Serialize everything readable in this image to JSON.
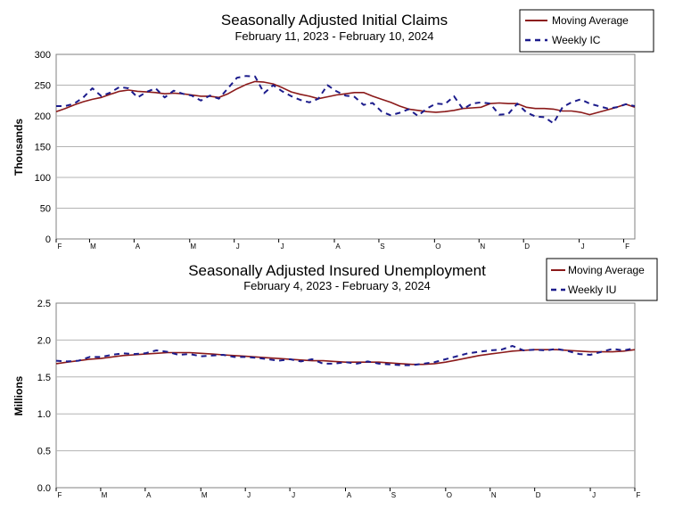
{
  "colors": {
    "moving_average": "#8b1a1a",
    "weekly": "#1c1c8c",
    "grid": "#b3b3b3"
  },
  "chart_data": [
    {
      "type": "line",
      "title": "Seasonally Adjusted Initial Claims",
      "subtitle": "February 11, 2023 - February 10, 2024",
      "xlabel": "",
      "ylabel": "Thousands",
      "ylim": [
        0,
        300
      ],
      "yticks": [
        0,
        50,
        100,
        150,
        200,
        250,
        300
      ],
      "xlim": [
        0,
        52
      ],
      "month_ticks": [
        {
          "label": "F",
          "x": 0
        },
        {
          "label": "M",
          "x": 3
        },
        {
          "label": "A",
          "x": 7
        },
        {
          "label": "M",
          "x": 12
        },
        {
          "label": "J",
          "x": 16
        },
        {
          "label": "J",
          "x": 20
        },
        {
          "label": "A",
          "x": 25
        },
        {
          "label": "S",
          "x": 29
        },
        {
          "label": "O",
          "x": 34
        },
        {
          "label": "N",
          "x": 38
        },
        {
          "label": "D",
          "x": 42
        },
        {
          "label": "J",
          "x": 47
        },
        {
          "label": "F",
          "x": 51
        }
      ],
      "grid": true,
      "legend_position": "top-right",
      "series": [
        {
          "name": "Moving Average",
          "style": "solid",
          "values": [
            207,
            212,
            218,
            223,
            227,
            230,
            235,
            240,
            242,
            240,
            239,
            238,
            236,
            237,
            236,
            234,
            232,
            232,
            230,
            236,
            244,
            251,
            256,
            255,
            252,
            246,
            239,
            235,
            232,
            228,
            231,
            234,
            236,
            238,
            238,
            232,
            227,
            222,
            216,
            211,
            209,
            207,
            206,
            207,
            209,
            212,
            213,
            214,
            220,
            221,
            220,
            220,
            214,
            212,
            212,
            211,
            208,
            208,
            206,
            202,
            206,
            210,
            214,
            219,
            214
          ]
        },
        {
          "name": "Weekly IC",
          "style": "dashed",
          "values": [
            216,
            216,
            220,
            230,
            245,
            232,
            238,
            247,
            245,
            230,
            239,
            245,
            230,
            241,
            236,
            233,
            225,
            233,
            228,
            245,
            262,
            265,
            264,
            237,
            250,
            240,
            232,
            226,
            222,
            228,
            250,
            240,
            233,
            231,
            218,
            221,
            207,
            201,
            205,
            211,
            200,
            212,
            220,
            219,
            232,
            211,
            220,
            222,
            220,
            202,
            203,
            220,
            206,
            199,
            198,
            188,
            214,
            222,
            227,
            220,
            216,
            212,
            214,
            219,
            216
          ]
        }
      ]
    },
    {
      "type": "line",
      "title": "Seasonally Adjusted Insured Unemployment",
      "subtitle": "February 4, 2023 - February 3, 2024",
      "xlabel": "",
      "ylabel": "Millions",
      "ylim": [
        0,
        2.5
      ],
      "yticks": [
        0.0,
        0.5,
        1.0,
        1.5,
        2.0,
        2.5
      ],
      "ytick_labels": [
        "0.0",
        "0.5",
        "1.0",
        "1.5",
        "2.0",
        "2.5"
      ],
      "xlim": [
        0,
        52
      ],
      "month_ticks": [
        {
          "label": "F",
          "x": 0
        },
        {
          "label": "M",
          "x": 4
        },
        {
          "label": "A",
          "x": 8
        },
        {
          "label": "M",
          "x": 13
        },
        {
          "label": "J",
          "x": 17
        },
        {
          "label": "J",
          "x": 21
        },
        {
          "label": "A",
          "x": 26
        },
        {
          "label": "S",
          "x": 30
        },
        {
          "label": "O",
          "x": 35
        },
        {
          "label": "N",
          "x": 39
        },
        {
          "label": "D",
          "x": 43
        },
        {
          "label": "J",
          "x": 48
        },
        {
          "label": "F",
          "x": 52
        }
      ],
      "grid": true,
      "legend_position": "top-right",
      "series": [
        {
          "name": "Moving Average",
          "style": "solid",
          "values": [
            1.68,
            1.7,
            1.72,
            1.74,
            1.75,
            1.77,
            1.79,
            1.8,
            1.81,
            1.82,
            1.83,
            1.83,
            1.83,
            1.82,
            1.81,
            1.8,
            1.79,
            1.78,
            1.77,
            1.76,
            1.75,
            1.74,
            1.73,
            1.72,
            1.72,
            1.71,
            1.7,
            1.7,
            1.7,
            1.7,
            1.69,
            1.68,
            1.67,
            1.67,
            1.68,
            1.7,
            1.73,
            1.76,
            1.79,
            1.81,
            1.83,
            1.85,
            1.86,
            1.87,
            1.87,
            1.87,
            1.86,
            1.85,
            1.84,
            1.84,
            1.84,
            1.85,
            1.87
          ]
        },
        {
          "name": "Weekly IU",
          "style": "dashed",
          "values": [
            1.72,
            1.71,
            1.72,
            1.77,
            1.77,
            1.8,
            1.82,
            1.81,
            1.82,
            1.86,
            1.84,
            1.8,
            1.81,
            1.78,
            1.79,
            1.8,
            1.77,
            1.77,
            1.76,
            1.74,
            1.72,
            1.74,
            1.71,
            1.74,
            1.68,
            1.68,
            1.7,
            1.68,
            1.71,
            1.68,
            1.67,
            1.66,
            1.66,
            1.68,
            1.7,
            1.74,
            1.78,
            1.82,
            1.84,
            1.86,
            1.87,
            1.92,
            1.86,
            1.87,
            1.86,
            1.88,
            1.85,
            1.81,
            1.8,
            1.84,
            1.88,
            1.86,
            1.89
          ]
        }
      ]
    }
  ]
}
